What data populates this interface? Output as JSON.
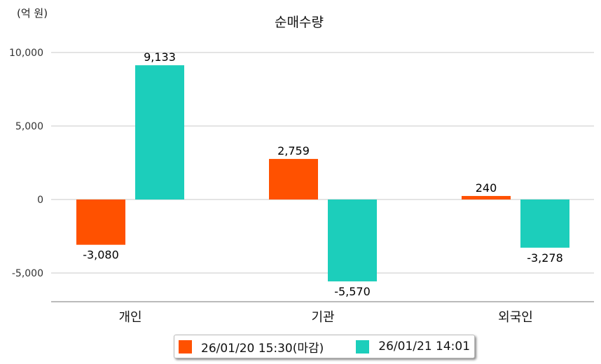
{
  "chart_data": {
    "type": "bar",
    "title": "순매수량",
    "unit_label": "(억 원)",
    "categories": [
      "개인",
      "기관",
      "외국인"
    ],
    "series": [
      {
        "name": "26/01/20 15:30(마감)",
        "color": "#ff5100",
        "values": [
          -3080,
          2759,
          240
        ],
        "labels": [
          "-3,080",
          "2,759",
          "240"
        ]
      },
      {
        "name": "26/01/21 14:01",
        "color": "#1ccebb",
        "values": [
          9133,
          -5570,
          -3278
        ],
        "labels": [
          "9,133",
          "-5,570",
          "-3,278"
        ]
      }
    ],
    "yticks": [
      10000,
      5000,
      0,
      -5000
    ],
    "ytick_labels": [
      "10,000",
      "5,000",
      "0",
      "-5,000"
    ],
    "ylim": [
      -7000,
      10500
    ],
    "grid": true,
    "legend_position": "bottom"
  }
}
